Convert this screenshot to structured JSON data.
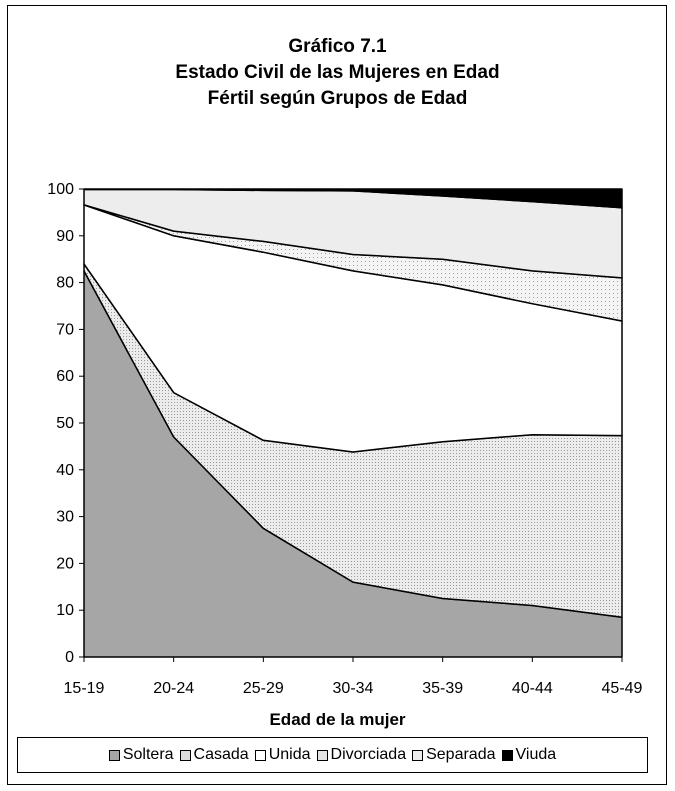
{
  "chart_data": {
    "type": "area",
    "stacked": true,
    "title_lines": [
      "Gráfico 7.1",
      "Estado Civil de las Mujeres en Edad",
      "Fértil según Grupos de Edad"
    ],
    "xlabel": "Edad de la mujer",
    "ylabel": "",
    "categories": [
      "15-19",
      "20-24",
      "25-29",
      "30-34",
      "35-39",
      "40-44",
      "45-49"
    ],
    "ylim": [
      0,
      100
    ],
    "yticks": [
      0,
      10,
      20,
      30,
      40,
      50,
      60,
      70,
      80,
      90,
      100
    ],
    "legend_position": "bottom",
    "grid": false,
    "series": [
      {
        "name": "Soltera",
        "color": "#a6a6a6",
        "values": [
          82.5,
          47.0,
          27.5,
          16.0,
          12.5,
          11.0,
          8.5
        ]
      },
      {
        "name": "Casada",
        "color": "#e6e6e6",
        "values": [
          1.5,
          9.5,
          18.8,
          27.8,
          33.5,
          36.5,
          38.8
        ]
      },
      {
        "name": "Unida",
        "color": "#ffffff",
        "values": [
          12.6,
          33.5,
          40.2,
          38.7,
          33.5,
          28.0,
          24.5
        ]
      },
      {
        "name": "Divorciada",
        "color": "#dcdcdc",
        "values": [
          0.0,
          1.0,
          2.3,
          3.5,
          5.5,
          7.0,
          9.2
        ]
      },
      {
        "name": "Separada",
        "color": "#eeeeee",
        "values": [
          3.3,
          8.9,
          10.9,
          13.6,
          13.5,
          14.8,
          15.0
        ]
      },
      {
        "name": "Viuda",
        "color": "#000000",
        "values": [
          0.1,
          0.1,
          0.3,
          0.4,
          1.5,
          2.7,
          4.0
        ]
      }
    ]
  }
}
